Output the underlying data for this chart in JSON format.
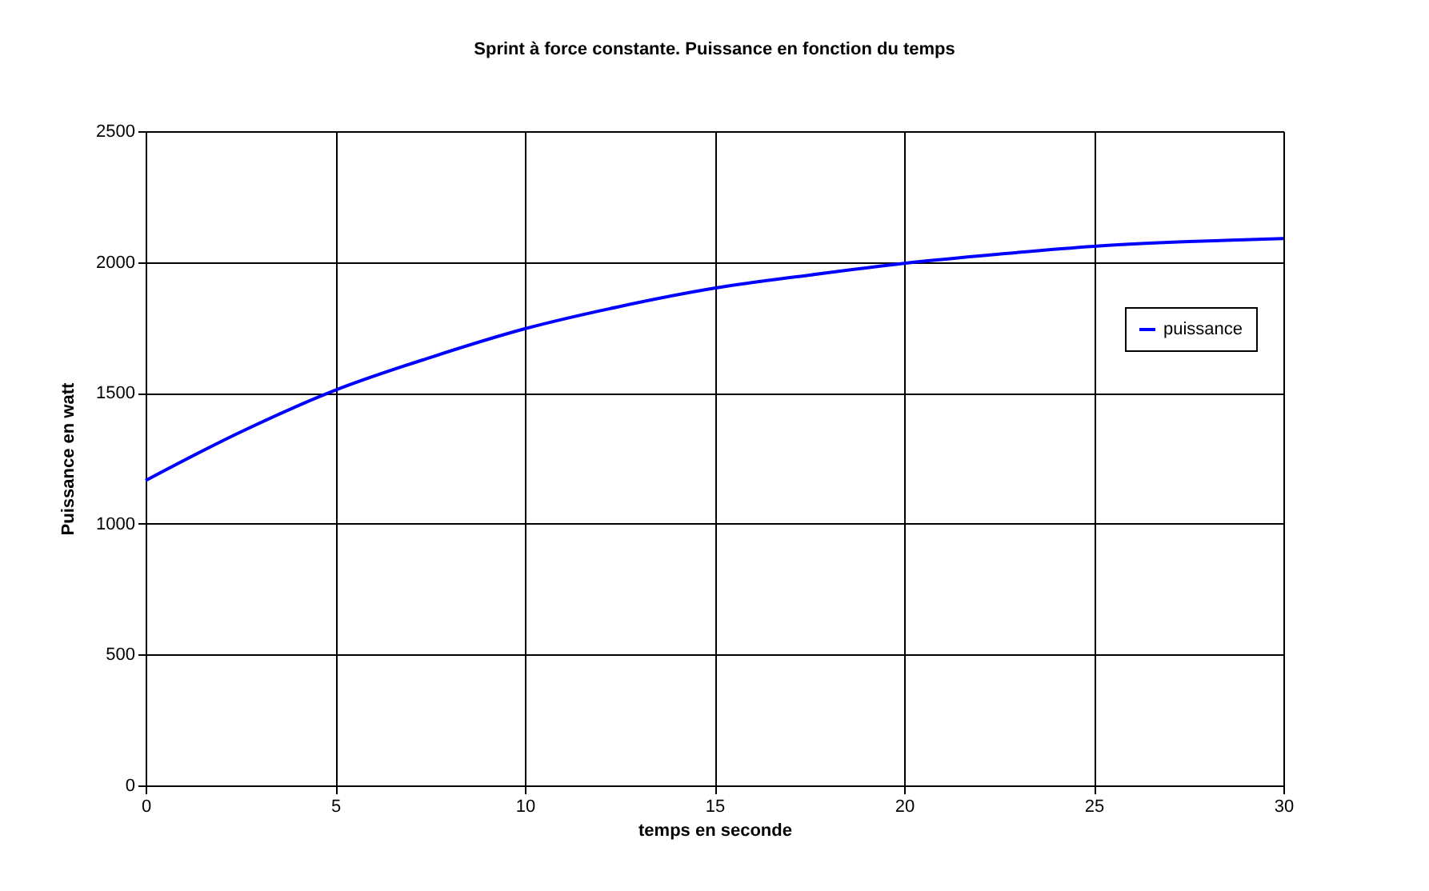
{
  "chart_data": {
    "type": "line",
    "title": "Sprint à force constante. Puissance en fonction du temps",
    "xlabel": "temps en seconde",
    "ylabel": "Puissance en watt",
    "x": [
      0,
      2.5,
      5,
      7.5,
      10,
      12.5,
      15,
      17.5,
      20,
      22.5,
      25,
      27.5,
      30
    ],
    "series": [
      {
        "name": "puissance",
        "color": "#0000ff",
        "values": [
          1165,
          1350,
          1510,
          1635,
          1745,
          1830,
          1900,
          1950,
          1995,
          2030,
          2060,
          2078,
          2090
        ]
      }
    ],
    "xlim": [
      0,
      30
    ],
    "xticks": [
      0,
      5,
      10,
      15,
      20,
      25,
      30
    ],
    "ylim": [
      0,
      2500
    ],
    "yticks": [
      0,
      500,
      1000,
      1500,
      2000,
      2500
    ],
    "grid": true,
    "legend": "right",
    "marker": "none",
    "line_style": "solid"
  }
}
